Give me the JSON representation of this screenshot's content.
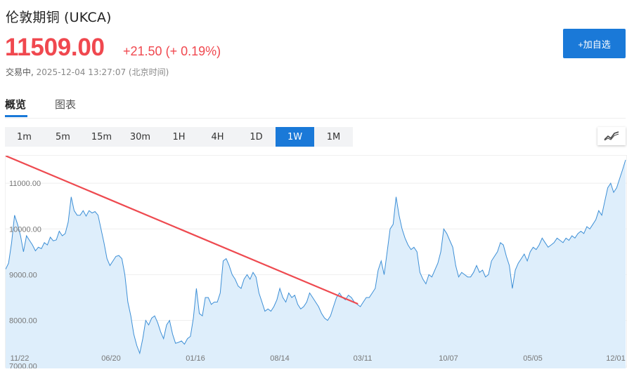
{
  "header": {
    "title": "伦敦期铜 (UKCA)",
    "price": "11509.00",
    "change": "+21.50",
    "change_pct": "(+ 0.19%)",
    "status": "交易中,",
    "timestamp": "2025-12-04 13:27:07 (北京时间)",
    "add_button": "+加自选",
    "up_color": "#f0484f",
    "accent_color": "#1a79d8"
  },
  "tabs": [
    {
      "label": "概览",
      "active": true
    },
    {
      "label": "图表",
      "active": false
    }
  ],
  "periods": [
    {
      "label": "1m",
      "active": false
    },
    {
      "label": "5m",
      "active": false
    },
    {
      "label": "15m",
      "active": false
    },
    {
      "label": "30m",
      "active": false
    },
    {
      "label": "1H",
      "active": false
    },
    {
      "label": "4H",
      "active": false
    },
    {
      "label": "1D",
      "active": false
    },
    {
      "label": "1W",
      "active": true
    },
    {
      "label": "1M",
      "active": false
    }
  ],
  "chart_toggle_icon": "line-chart-icon",
  "chart_data": {
    "type": "area",
    "ylim": [
      6950,
      11600
    ],
    "yticks": [
      7000,
      8000,
      9000,
      10000,
      11000
    ],
    "ytick_labels": [
      "7000.00",
      "8000.00",
      "9000.00",
      "10000.00",
      "11000.00"
    ],
    "x_labels": [
      "11/22",
      "06/20",
      "01/16",
      "08/14",
      "03/11",
      "10/07",
      "05/05",
      "12/01"
    ],
    "grid": true,
    "line_color": "#3d8fd6",
    "fill_color": "#deeefb",
    "annotation": {
      "type": "arrow",
      "color": "#ee4a50",
      "from_index": 118,
      "to_index": 228
    },
    "values": [
      9120,
      9250,
      9700,
      10300,
      10100,
      9850,
      9500,
      9850,
      9750,
      9650,
      9520,
      9600,
      9570,
      9700,
      9650,
      9820,
      9740,
      9760,
      9950,
      9850,
      9900,
      10150,
      10700,
      10400,
      10300,
      10300,
      10400,
      10280,
      10400,
      10350,
      10380,
      10300,
      10000,
      9700,
      9350,
      9200,
      9300,
      9400,
      9420,
      9350,
      9000,
      8400,
      8100,
      7700,
      7450,
      7280,
      7600,
      8000,
      7900,
      8050,
      8100,
      7950,
      7750,
      7600,
      7900,
      8000,
      7700,
      7500,
      7520,
      7550,
      7480,
      7600,
      7650,
      8050,
      8700,
      8150,
      8100,
      8500,
      8500,
      8350,
      8400,
      8400,
      8600,
      9300,
      9350,
      9200,
      9000,
      8900,
      8750,
      8700,
      8900,
      9000,
      8900,
      9050,
      8950,
      8600,
      8400,
      8200,
      8250,
      8200,
      8300,
      8450,
      8700,
      8500,
      8400,
      8600,
      8500,
      8550,
      8350,
      8250,
      8300,
      8400,
      8600,
      8500,
      8400,
      8300,
      8150,
      8050,
      8000,
      8100,
      8300,
      8500,
      8600,
      8500,
      8450,
      8550,
      8500,
      8400,
      8350,
      8300,
      8400,
      8500,
      8500,
      8600,
      8700,
      9100,
      9300,
      9000,
      9500,
      10000,
      10100,
      10700,
      10300,
      10000,
      9800,
      9650,
      9550,
      9600,
      9500,
      9050,
      8900,
      8800,
      9000,
      8950,
      9100,
      9250,
      9500,
      10000,
      9900,
      9750,
      9600,
      9200,
      8950,
      9050,
      9000,
      8950,
      8950,
      9050,
      9200,
      9050,
      9100,
      8950,
      9000,
      9300,
      9400,
      9500,
      9700,
      9650,
      9400,
      9200,
      8700,
      9100,
      9250,
      9350,
      9450,
      9300,
      9500,
      9600,
      9550,
      9650,
      9800,
      9700,
      9600,
      9650,
      9700,
      9800,
      9750,
      9700,
      9800,
      9750,
      9850,
      9800,
      9900,
      9950,
      9900,
      10050,
      10000,
      10100,
      10200,
      10400,
      10300,
      10600,
      10900,
      11000,
      10800,
      10900,
      11100,
      11300,
      11509
    ]
  }
}
